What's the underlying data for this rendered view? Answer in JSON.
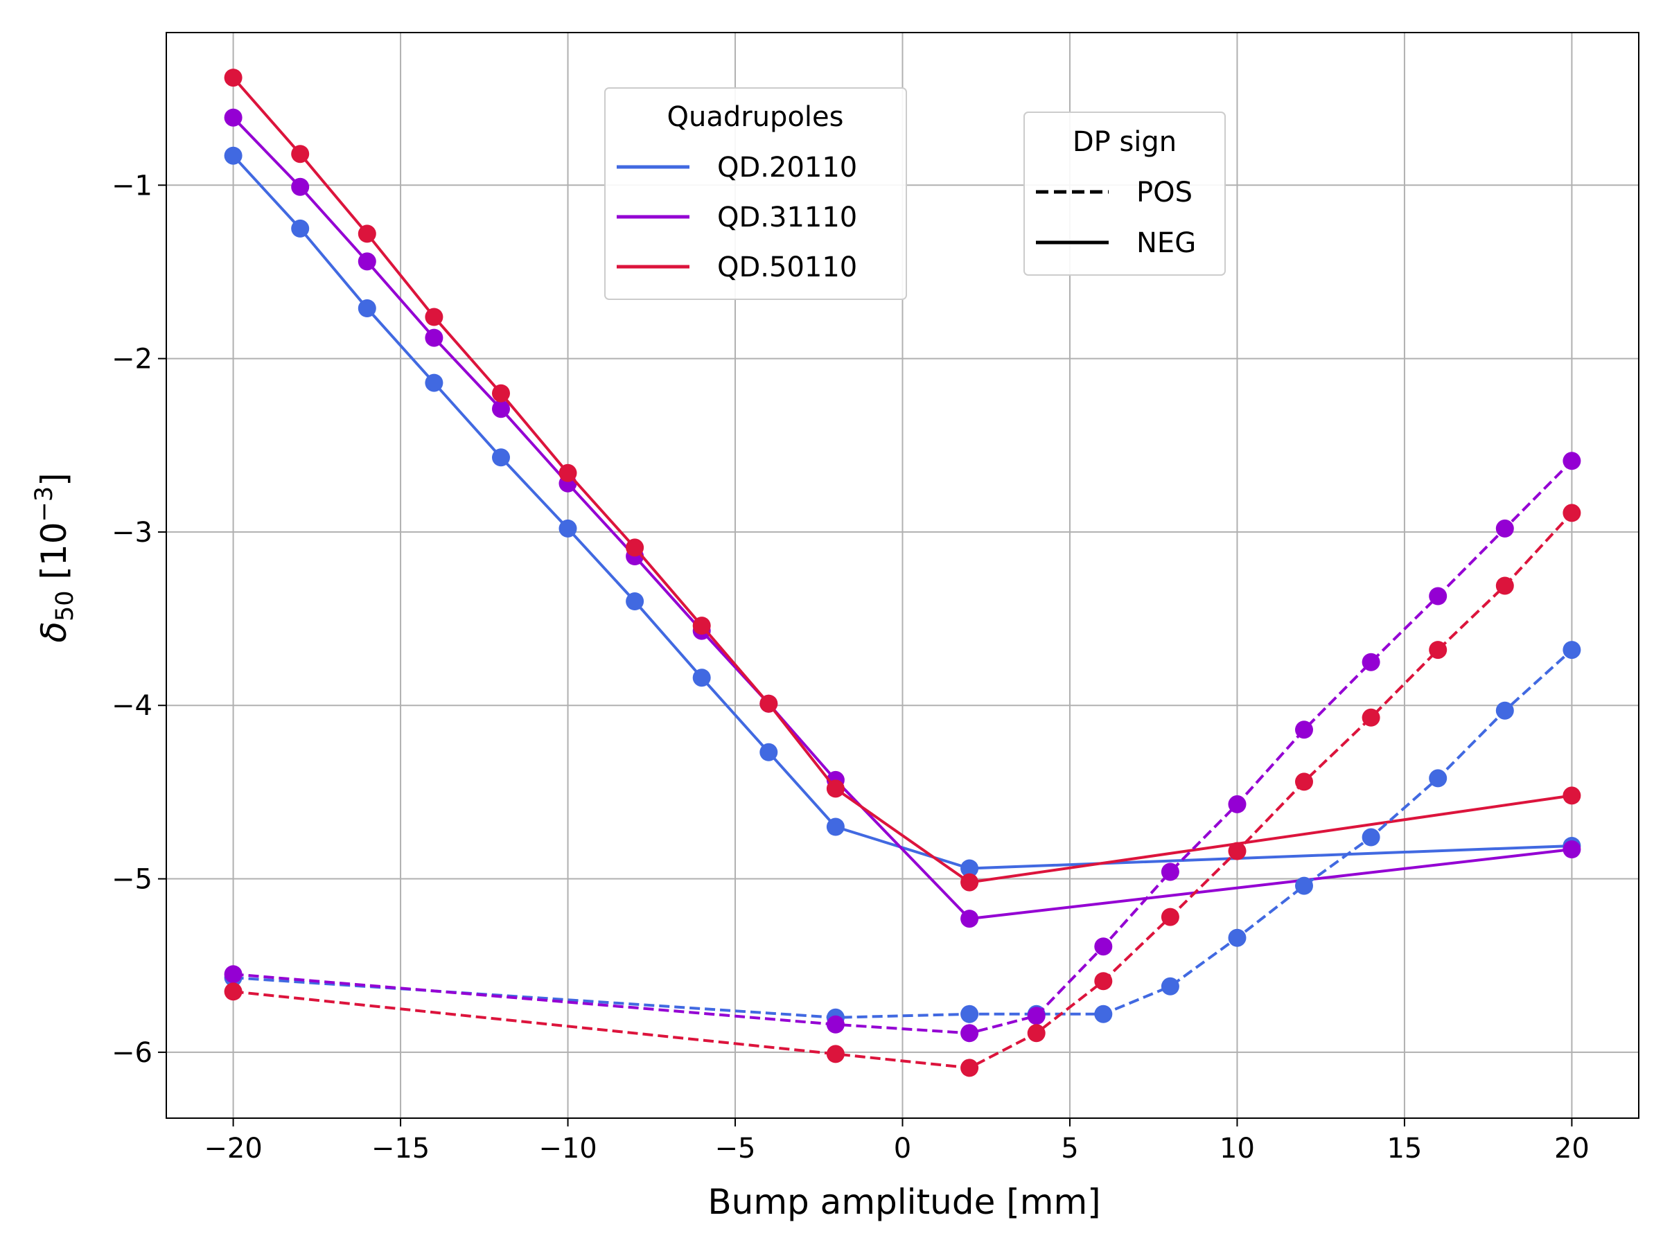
{
  "chart_data": {
    "type": "line",
    "xlabel": "Bump amplitude [mm]",
    "ylabel_base": "δ",
    "ylabel_sub": "50",
    "ylabel_unit_open": " [10",
    "ylabel_unit_sup": "−3",
    "ylabel_unit_close": "]",
    "xlim": [
      -22,
      22
    ],
    "ylim": [
      -6.38,
      -0.12
    ],
    "xticks": [
      -20,
      -15,
      -10,
      -5,
      0,
      5,
      10,
      15,
      20
    ],
    "xtick_labels": [
      "−20",
      "−15",
      "−10",
      "−5",
      "0",
      "5",
      "10",
      "15",
      "20"
    ],
    "yticks": [
      -1,
      -2,
      -3,
      -4,
      -5,
      -6
    ],
    "ytick_labels": [
      "−1",
      "−2",
      "−3",
      "−4",
      "−5",
      "−6"
    ],
    "grid": true,
    "legends": [
      {
        "title": "Quadrupoles",
        "placement": "top-center",
        "entries": [
          {
            "label": "QD.20110",
            "color": "#4169e1",
            "style": "solid"
          },
          {
            "label": "QD.31110",
            "color": "#9400d3",
            "style": "solid"
          },
          {
            "label": "QD.50110",
            "color": "#dc143c",
            "style": "solid"
          }
        ]
      },
      {
        "title": "DP sign",
        "placement": "top-right-center",
        "entries": [
          {
            "label": "POS",
            "color": "#000000",
            "style": "dashed"
          },
          {
            "label": "NEG",
            "color": "#000000",
            "style": "solid"
          }
        ]
      }
    ],
    "series": [
      {
        "quadrupole": "QD.20110",
        "dp_sign": "NEG",
        "color": "#4169e1",
        "style": "solid",
        "x": [
          -20,
          -18,
          -16,
          -14,
          -12,
          -10,
          -8,
          -6,
          -4,
          -2,
          2,
          20
        ],
        "y": [
          -0.83,
          -1.25,
          -1.71,
          -2.14,
          -2.57,
          -2.98,
          -3.4,
          -3.84,
          -4.27,
          -4.7,
          -4.94,
          -4.81
        ]
      },
      {
        "quadrupole": "QD.31110",
        "dp_sign": "NEG",
        "color": "#9400d3",
        "style": "solid",
        "x": [
          -20,
          -18,
          -16,
          -14,
          -12,
          -10,
          -8,
          -6,
          -4,
          -2,
          2,
          20
        ],
        "y": [
          -0.61,
          -1.01,
          -1.44,
          -1.88,
          -2.29,
          -2.72,
          -3.14,
          -3.57,
          -3.99,
          -4.43,
          -5.23,
          -4.83
        ]
      },
      {
        "quadrupole": "QD.50110",
        "dp_sign": "NEG",
        "color": "#dc143c",
        "style": "solid",
        "x": [
          -20,
          -18,
          -16,
          -14,
          -12,
          -10,
          -8,
          -6,
          -4,
          -2,
          2,
          20
        ],
        "y": [
          -0.38,
          -0.82,
          -1.28,
          -1.76,
          -2.2,
          -2.66,
          -3.09,
          -3.54,
          -3.99,
          -4.48,
          -5.02,
          -4.52
        ]
      },
      {
        "quadrupole": "QD.20110",
        "dp_sign": "POS",
        "color": "#4169e1",
        "style": "dashed",
        "x": [
          -20,
          -2,
          2,
          4,
          6,
          8,
          10,
          12,
          14,
          16,
          18,
          20
        ],
        "y": [
          -5.57,
          -5.8,
          -5.78,
          -5.78,
          -5.78,
          -5.62,
          -5.34,
          -5.04,
          -4.76,
          -4.42,
          -4.03,
          -3.68
        ]
      },
      {
        "quadrupole": "QD.31110",
        "dp_sign": "POS",
        "color": "#9400d3",
        "style": "dashed",
        "x": [
          -20,
          -2,
          2,
          4,
          6,
          8,
          10,
          12,
          14,
          16,
          18,
          20
        ],
        "y": [
          -5.55,
          -5.84,
          -5.89,
          -5.79,
          -5.39,
          -4.96,
          -4.57,
          -4.14,
          -3.75,
          -3.37,
          -2.98,
          -2.59
        ]
      },
      {
        "quadrupole": "QD.50110",
        "dp_sign": "POS",
        "color": "#dc143c",
        "style": "dashed",
        "x": [
          -20,
          -2,
          2,
          4,
          6,
          8,
          10,
          12,
          14,
          16,
          18,
          20
        ],
        "y": [
          -5.65,
          -6.01,
          -6.09,
          -5.89,
          -5.59,
          -5.22,
          -4.84,
          -4.44,
          -4.07,
          -3.68,
          -3.31,
          -2.89
        ]
      }
    ]
  }
}
